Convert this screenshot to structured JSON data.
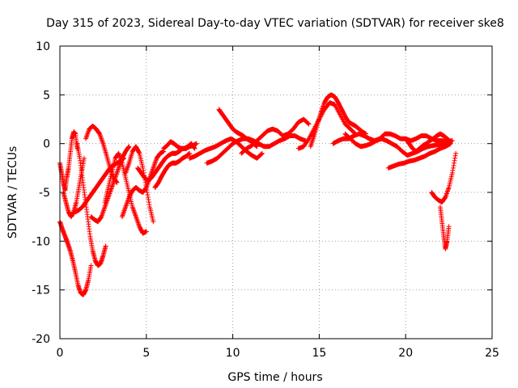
{
  "chart_data": {
    "type": "scatter",
    "title": "Day 315 of 2023, Sidereal Day-to-day VTEC variation (SDTVAR) for receiver ske8",
    "xlabel": "GPS time / hours",
    "ylabel": "SDTVAR / TECUs",
    "xlim": [
      0,
      25
    ],
    "ylim": [
      -20,
      10
    ],
    "xticks": [
      0,
      5,
      10,
      15,
      20,
      25
    ],
    "yticks": [
      -20,
      -15,
      -10,
      -5,
      0,
      5,
      10
    ],
    "grid": true,
    "marker": "plus",
    "color": "#ff0000",
    "series": [
      {
        "name": "arc1",
        "x": [
          0.0,
          0.15,
          0.3,
          0.45,
          0.6,
          0.75,
          0.9,
          1.05,
          1.2,
          1.35,
          1.5,
          1.65,
          1.8
        ],
        "y": [
          -8.0,
          -8.8,
          -9.5,
          -10.2,
          -11.0,
          -12.0,
          -13.2,
          -14.5,
          -15.3,
          -15.5,
          -15.0,
          -14.0,
          -12.5
        ]
      },
      {
        "name": "arc2",
        "x": [
          0.0,
          0.1,
          0.2,
          0.3,
          0.4,
          0.5,
          0.6,
          0.7,
          0.8,
          0.9,
          1.0
        ],
        "y": [
          -2.0,
          -3.0,
          -4.0,
          -4.8,
          -3.5,
          -2.5,
          -1.0,
          0.5,
          1.2,
          1.0,
          -0.5
        ]
      },
      {
        "name": "arc3",
        "x": [
          0.2,
          0.35,
          0.5,
          0.65,
          0.8,
          0.95,
          1.1,
          1.25,
          1.4
        ],
        "y": [
          -5.0,
          -6.0,
          -7.0,
          -7.5,
          -7.0,
          -6.0,
          -4.5,
          -3.0,
          -1.5
        ]
      },
      {
        "name": "arc4",
        "x": [
          1.0,
          1.15,
          1.3,
          1.45,
          1.6,
          1.75,
          1.9,
          2.05,
          2.2,
          2.35,
          2.5,
          2.65
        ],
        "y": [
          0.0,
          -1.5,
          -3.5,
          -5.5,
          -7.5,
          -9.5,
          -11.0,
          -12.0,
          -12.5,
          -12.3,
          -11.5,
          -10.5
        ]
      },
      {
        "name": "arc5",
        "x": [
          1.5,
          1.7,
          1.9,
          2.1,
          2.3,
          2.5,
          2.7,
          2.9,
          3.1,
          3.3
        ],
        "y": [
          0.5,
          1.5,
          1.8,
          1.5,
          1.0,
          0.0,
          -1.2,
          -2.5,
          -3.5,
          -4.0
        ]
      },
      {
        "name": "arc6",
        "x": [
          0.9,
          1.1,
          1.3,
          1.5,
          1.7,
          1.9,
          2.1,
          2.3,
          2.5,
          2.7,
          2.9,
          3.1,
          3.3,
          3.5,
          3.7
        ],
        "y": [
          -7.0,
          -6.8,
          -6.5,
          -6.0,
          -5.5,
          -5.0,
          -4.5,
          -4.0,
          -3.5,
          -3.0,
          -2.5,
          -2.2,
          -2.0,
          -1.8,
          -1.5
        ]
      },
      {
        "name": "arc7",
        "x": [
          1.8,
          2.0,
          2.2,
          2.4,
          2.6,
          2.8,
          3.0,
          3.2,
          3.4,
          3.6,
          3.8,
          4.0
        ],
        "y": [
          -7.5,
          -7.8,
          -8.0,
          -7.5,
          -6.5,
          -5.5,
          -4.5,
          -3.5,
          -2.5,
          -1.5,
          -0.8,
          -0.3
        ]
      },
      {
        "name": "arc8",
        "x": [
          2.6,
          2.8,
          3.0,
          3.2,
          3.4,
          3.6,
          3.8,
          4.0,
          4.2,
          4.4,
          4.6,
          4.8,
          5.0
        ],
        "y": [
          -6.0,
          -4.5,
          -3.0,
          -1.5,
          -1.0,
          -2.0,
          -3.5,
          -5.0,
          -6.5,
          -7.5,
          -8.5,
          -9.2,
          -9.0
        ]
      },
      {
        "name": "arc9",
        "x": [
          3.6,
          3.8,
          4.0,
          4.2,
          4.4,
          4.6,
          4.8,
          5.0,
          5.2,
          5.4,
          5.6,
          5.8,
          6.0
        ],
        "y": [
          -7.5,
          -6.5,
          -5.5,
          -4.8,
          -4.5,
          -4.8,
          -5.0,
          -4.5,
          -3.5,
          -2.5,
          -1.5,
          -1.0,
          -0.8
        ]
      },
      {
        "name": "arc10",
        "x": [
          3.8,
          4.0,
          4.2,
          4.4,
          4.6,
          4.8,
          5.0,
          5.2,
          5.4
        ],
        "y": [
          -3.0,
          -2.0,
          -0.8,
          -0.3,
          -1.0,
          -2.5,
          -4.5,
          -6.5,
          -8.0
        ]
      },
      {
        "name": "arc11",
        "x": [
          4.5,
          4.7,
          4.9,
          5.1,
          5.3,
          5.5,
          5.7,
          5.9,
          6.1,
          6.3,
          6.5,
          6.7,
          6.9,
          7.1,
          7.3,
          7.5,
          7.7,
          7.9
        ],
        "y": [
          -2.5,
          -3.0,
          -3.5,
          -3.8,
          -3.5,
          -3.0,
          -2.5,
          -2.0,
          -1.5,
          -1.2,
          -1.0,
          -1.0,
          -0.8,
          -0.5,
          -0.5,
          -0.3,
          -0.2,
          0.0
        ]
      },
      {
        "name": "arc12",
        "x": [
          5.5,
          5.7,
          5.9,
          6.1,
          6.3,
          6.5,
          6.7,
          6.9,
          7.1,
          7.3,
          7.5
        ],
        "y": [
          -4.5,
          -4.0,
          -3.3,
          -2.7,
          -2.2,
          -2.0,
          -2.0,
          -1.8,
          -1.5,
          -1.3,
          -1.0
        ]
      },
      {
        "name": "arc13",
        "x": [
          6.0,
          6.2,
          6.4,
          6.6,
          6.8,
          7.0,
          7.2,
          7.4,
          7.6,
          7.8
        ],
        "y": [
          -0.5,
          -0.2,
          0.2,
          0.0,
          -0.3,
          -0.5,
          -0.5,
          -0.3,
          0.0,
          -0.5
        ]
      },
      {
        "name": "arc14",
        "x": [
          7.5,
          7.8,
          8.1,
          8.4,
          8.7,
          9.0,
          9.3,
          9.6,
          9.9,
          10.2,
          10.5,
          10.8,
          11.1,
          11.4,
          11.7
        ],
        "y": [
          -1.5,
          -1.3,
          -1.0,
          -0.7,
          -0.5,
          -0.3,
          0.0,
          0.3,
          0.5,
          0.2,
          -0.3,
          -0.8,
          -1.2,
          -1.5,
          -1.0
        ]
      },
      {
        "name": "arc15",
        "x": [
          8.5,
          8.8,
          9.1,
          9.4,
          9.7,
          10.0,
          10.3,
          10.6,
          10.9,
          11.2,
          11.5,
          11.8,
          12.1,
          12.4,
          12.7,
          13.0,
          13.3,
          13.6,
          13.9,
          14.2
        ],
        "y": [
          -2.0,
          -1.8,
          -1.5,
          -1.0,
          -0.5,
          0.0,
          0.3,
          0.5,
          0.5,
          0.3,
          0.0,
          -0.3,
          -0.3,
          0.0,
          0.3,
          0.5,
          0.8,
          0.8,
          0.5,
          0.3
        ]
      },
      {
        "name": "arc16",
        "x": [
          9.2,
          9.4,
          9.6,
          9.8,
          10.0,
          10.2,
          10.4,
          10.6,
          10.8,
          11.0,
          11.2,
          11.4
        ],
        "y": [
          3.5,
          3.0,
          2.5,
          2.0,
          1.5,
          1.2,
          1.0,
          0.8,
          0.5,
          0.3,
          0.0,
          -0.3
        ]
      },
      {
        "name": "arc17",
        "x": [
          10.5,
          10.8,
          11.1,
          11.4,
          11.7,
          12.0,
          12.3,
          12.6,
          12.9,
          13.2,
          13.5,
          13.8,
          14.1,
          14.4
        ],
        "y": [
          -1.0,
          -0.5,
          -0.2,
          0.3,
          0.8,
          1.3,
          1.5,
          1.3,
          0.8,
          1.0,
          1.5,
          2.2,
          2.5,
          2.0
        ]
      },
      {
        "name": "arc18",
        "x": [
          13.8,
          14.1,
          14.4,
          14.7,
          15.0,
          15.3,
          15.6,
          15.9,
          16.2,
          16.5,
          16.8,
          17.1
        ],
        "y": [
          -0.5,
          -0.3,
          0.5,
          1.5,
          2.5,
          3.5,
          4.2,
          4.0,
          3.0,
          2.0,
          1.5,
          1.0
        ]
      },
      {
        "name": "arc19",
        "x": [
          14.5,
          14.7,
          14.9,
          15.1,
          15.3,
          15.5,
          15.7,
          15.9,
          16.1,
          16.3,
          16.5,
          16.7,
          16.9,
          17.1,
          17.3,
          17.5,
          17.7
        ],
        "y": [
          -0.3,
          0.8,
          2.0,
          3.2,
          4.2,
          4.8,
          5.0,
          4.8,
          4.2,
          3.5,
          2.8,
          2.2,
          2.0,
          1.8,
          1.5,
          1.2,
          1.0
        ]
      },
      {
        "name": "arc20",
        "x": [
          15.8,
          16.1,
          16.4,
          16.7,
          17.0,
          17.3,
          17.6,
          17.9,
          18.2,
          18.5,
          18.8,
          19.1,
          19.4,
          19.7,
          20.0,
          20.3,
          20.6,
          20.9,
          21.2,
          21.5,
          21.8,
          22.1,
          22.4,
          22.7
        ],
        "y": [
          0.0,
          0.3,
          0.5,
          0.5,
          0.8,
          1.0,
          0.8,
          0.5,
          0.3,
          0.5,
          1.0,
          1.0,
          0.8,
          0.5,
          0.5,
          0.3,
          0.5,
          0.8,
          0.8,
          0.5,
          0.3,
          0.3,
          0.2,
          0.3
        ]
      },
      {
        "name": "arc21",
        "x": [
          16.5,
          16.8,
          17.1,
          17.4,
          17.7,
          18.0,
          18.3,
          18.6,
          18.9,
          19.2,
          19.5,
          19.8,
          20.1,
          20.4,
          20.7,
          21.0,
          21.3,
          21.6,
          21.9,
          22.2,
          22.5
        ],
        "y": [
          1.0,
          0.5,
          0.0,
          -0.3,
          -0.2,
          0.0,
          0.3,
          0.5,
          0.3,
          0.0,
          -0.3,
          -0.8,
          -1.2,
          -1.0,
          -0.8,
          -0.5,
          -0.3,
          -0.2,
          -0.1,
          0.0,
          0.2
        ]
      },
      {
        "name": "arc22",
        "x": [
          19.0,
          19.3,
          19.6,
          19.9,
          20.2,
          20.5,
          20.8,
          21.1,
          21.4,
          21.7,
          22.0,
          22.3,
          22.6
        ],
        "y": [
          -2.5,
          -2.3,
          -2.1,
          -2.0,
          -1.8,
          -1.7,
          -1.5,
          -1.3,
          -1.0,
          -0.8,
          -0.5,
          -0.3,
          0.0
        ]
      },
      {
        "name": "arc23",
        "x": [
          20.0,
          20.2,
          20.4,
          20.6,
          20.8,
          21.0,
          21.2,
          21.4,
          21.6,
          21.8,
          22.0,
          22.2,
          22.4,
          22.6
        ],
        "y": [
          0.5,
          0.0,
          -0.5,
          -0.8,
          -0.5,
          -0.2,
          0.0,
          0.3,
          0.5,
          0.8,
          1.0,
          0.8,
          0.5,
          0.2
        ]
      },
      {
        "name": "arc24",
        "x": [
          21.5,
          21.7,
          21.9,
          22.1,
          22.3,
          22.5,
          22.7,
          22.9
        ],
        "y": [
          -5.0,
          -5.5,
          -5.8,
          -6.0,
          -5.5,
          -4.5,
          -3.0,
          -1.0
        ]
      },
      {
        "name": "arc25",
        "x": [
          22.0,
          22.1,
          22.2,
          22.3,
          22.4,
          22.5
        ],
        "y": [
          -6.5,
          -8.0,
          -9.5,
          -10.8,
          -10.0,
          -8.5
        ]
      }
    ]
  }
}
